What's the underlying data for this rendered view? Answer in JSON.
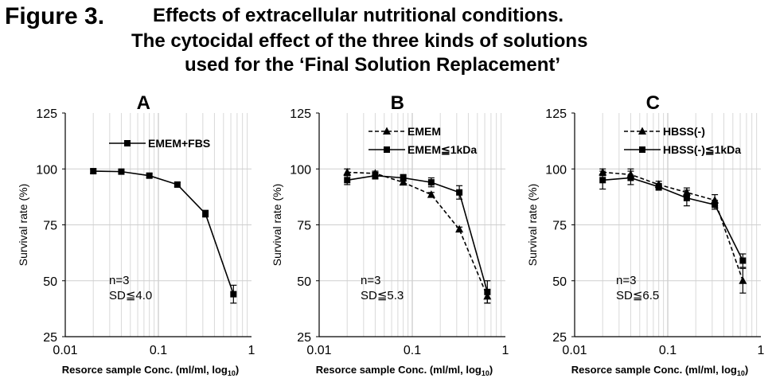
{
  "header": {
    "figure_label": "Figure 3.",
    "title_line1": "Effects of extracellular nutritional conditions.",
    "title_line2": "The cytocidal effect of the three kinds of solutions",
    "title_line3": "used for the ‘Final Solution Replacement’"
  },
  "chart_data": [
    {
      "type": "line",
      "panel": "A",
      "title": "A",
      "xlabel": "Resorce sample Conc. (ml/ml, log10)",
      "ylabel": "Survival rate (%)",
      "xscale": "log",
      "xlim": [
        0.01,
        1
      ],
      "ylim": [
        25,
        125
      ],
      "xticks": [
        "0.01",
        "0.1",
        "1"
      ],
      "yticks": [
        "25",
        "50",
        "75",
        "100",
        "125"
      ],
      "grid": true,
      "legend_position": "top-right",
      "annotation": [
        "n=3",
        "SD≦4.0"
      ],
      "series": [
        {
          "name": "EMEM+FBS",
          "marker": "square",
          "dash": "solid",
          "x": [
            0.02,
            0.04,
            0.08,
            0.16,
            0.32,
            0.64
          ],
          "y": [
            99,
            98.8,
            97,
            93,
            80,
            44
          ],
          "err": [
            1,
            0.5,
            1,
            1,
            1.5,
            4
          ]
        }
      ]
    },
    {
      "type": "line",
      "panel": "B",
      "title": "B",
      "xlabel": "Resorce sample Conc. (ml/ml, log10)",
      "ylabel": "Survival rate (%)",
      "xscale": "log",
      "xlim": [
        0.01,
        1
      ],
      "ylim": [
        25,
        125
      ],
      "xticks": [
        "0.01",
        "0.1",
        "1"
      ],
      "yticks": [
        "25",
        "50",
        "75",
        "100",
        "125"
      ],
      "grid": true,
      "legend_position": "top-right",
      "annotation": [
        "n=3",
        "SD≦5.3"
      ],
      "series": [
        {
          "name": "EMEM",
          "marker": "triangle",
          "dash": "dashed",
          "x": [
            0.02,
            0.04,
            0.08,
            0.16,
            0.32,
            0.64
          ],
          "y": [
            98.5,
            98,
            94,
            88.5,
            73,
            43
          ],
          "err": [
            1.5,
            1,
            1,
            1,
            1,
            3
          ]
        },
        {
          "name": "EMEM≦1kDa",
          "marker": "square",
          "dash": "solid",
          "x": [
            0.02,
            0.04,
            0.08,
            0.16,
            0.32,
            0.64
          ],
          "y": [
            95,
            97,
            96,
            94,
            89.5,
            45
          ],
          "err": [
            2,
            1.5,
            1.5,
            2,
            3,
            5
          ]
        }
      ]
    },
    {
      "type": "line",
      "panel": "C",
      "title": "C",
      "xlabel": "Resorce sample Conc. (ml/ml, log10)",
      "ylabel": "Survival rate (%)",
      "xscale": "log",
      "xlim": [
        0.01,
        1
      ],
      "ylim": [
        25,
        125
      ],
      "xticks": [
        "0.01",
        "0.1",
        "1"
      ],
      "yticks": [
        "25",
        "50",
        "75",
        "100",
        "125"
      ],
      "grid": true,
      "legend_position": "top-right",
      "annotation": [
        "n=3",
        "SD≦6.5"
      ],
      "series": [
        {
          "name": "HBSS(-)",
          "marker": "triangle",
          "dash": "dashed",
          "x": [
            0.02,
            0.04,
            0.08,
            0.16,
            0.32,
            0.64
          ],
          "y": [
            98.5,
            97.5,
            93,
            89.5,
            86,
            50
          ],
          "err": [
            1.5,
            2.5,
            1.5,
            2,
            2.5,
            5.5
          ]
        },
        {
          "name": "HBSS(-)≦1kDa",
          "marker": "square",
          "dash": "solid",
          "x": [
            0.02,
            0.04,
            0.08,
            0.16,
            0.32,
            0.64
          ],
          "y": [
            95,
            96,
            92,
            87,
            84,
            59
          ],
          "err": [
            4,
            3,
            1.5,
            3.5,
            2,
            3
          ]
        }
      ]
    }
  ]
}
